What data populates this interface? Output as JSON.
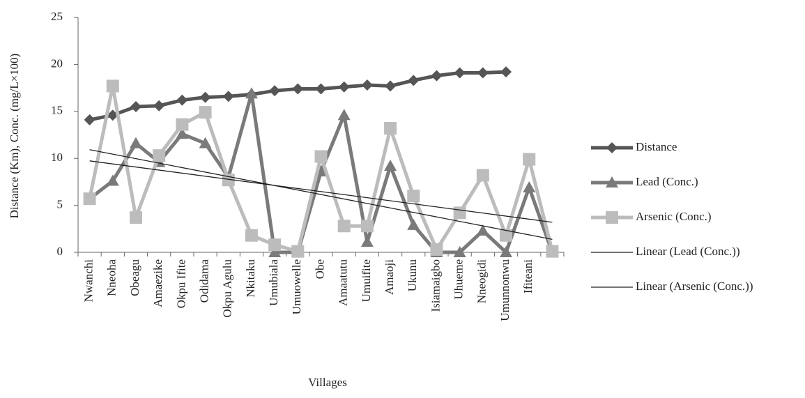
{
  "chart_data": {
    "type": "line",
    "x_label": "Villages",
    "y_label": "Distance (Km), Conc. (mg/L×100)",
    "categories": [
      "Nwanchi",
      "Nneoha",
      "Obeagu",
      "Amaezike",
      "Okpu Ifite",
      "Odidama",
      "Okpu Agulu",
      "Nkitaku",
      "Umubiala",
      "Umuowelle",
      "Obe",
      "Amaatutu",
      "Umuifite",
      "Amaoji",
      "Ukunu",
      "Isiamaigbo",
      "Uhueme",
      "Nneogidi",
      "Umunnonwu",
      "Ifiteani",
      null
    ],
    "series": [
      {
        "name": "Distance",
        "color": "#555555",
        "marker": "diamond",
        "values": [
          14.1,
          14.6,
          15.5,
          15.6,
          16.2,
          16.5,
          16.6,
          16.8,
          17.2,
          17.4,
          17.4,
          17.6,
          17.8,
          17.7,
          18.3,
          18.8,
          19.1,
          19.1,
          19.2,
          null,
          null
        ]
      },
      {
        "name": "Lead (Conc.)",
        "color": "#7a7a7a",
        "marker": "triangle",
        "values": [
          5.7,
          7.6,
          11.6,
          9.6,
          12.6,
          11.6,
          8.0,
          16.9,
          0,
          0,
          8.6,
          14.6,
          1.1,
          9.2,
          2.9,
          0,
          0,
          2.3,
          0,
          6.9,
          0
        ],
        "trendline": {
          "name": "Linear (Lead (Conc.))",
          "color": "#222222"
        }
      },
      {
        "name": "Arsenic (Conc.)",
        "color": "#bcbcbc",
        "marker": "square",
        "values": [
          5.7,
          17.7,
          3.7,
          10.3,
          13.6,
          14.9,
          7.7,
          1.8,
          0.8,
          0.1,
          10.2,
          2.8,
          2.8,
          13.2,
          6.0,
          0.3,
          4.2,
          8.2,
          1.8,
          9.9,
          0.1
        ],
        "trendline": {
          "name": "Linear (Arsenic (Conc.))",
          "color": "#222222"
        }
      }
    ],
    "ylim": [
      0,
      25
    ],
    "yticks": [
      0,
      5,
      10,
      15,
      20,
      25
    ],
    "legend": "right"
  }
}
